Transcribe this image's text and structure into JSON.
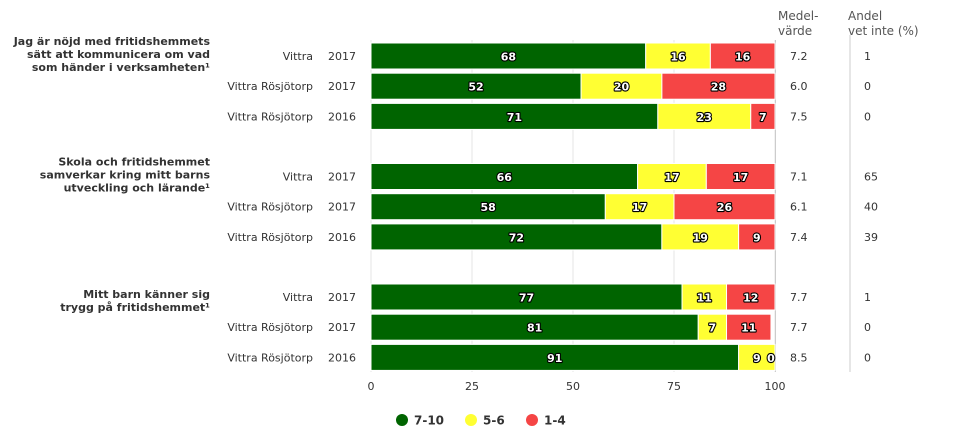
{
  "chart_data": {
    "type": "bar",
    "orientation": "horizontal",
    "stacked": true,
    "headers": {
      "mean_line1": "Medel-",
      "mean_line2": "värde",
      "dontknow_line1": "Andel",
      "dontknow_line2": "vet inte (%)"
    },
    "xlim": [
      0,
      100
    ],
    "xticks": [
      "0",
      "25",
      "50",
      "75",
      "100"
    ],
    "legend_position": "bottom",
    "series": [
      {
        "name": "7-10",
        "color": "#006400"
      },
      {
        "name": "5-6",
        "color": "#ffff33"
      },
      {
        "name": "1-4",
        "color": "#f54545"
      }
    ],
    "groups": [
      {
        "question": [
          "Jag är nöjd med fritidshemmets",
          "sätt att kommunicera om vad",
          "som händer i verksamheten¹"
        ],
        "rows": [
          {
            "label": "Vittra",
            "year": "2017",
            "values": [
              68,
              16,
              16
            ],
            "mean": "7.2",
            "dontknow": "1"
          },
          {
            "label": "Vittra Rösjötorp",
            "year": "2017",
            "values": [
              52,
              20,
              28
            ],
            "mean": "6.0",
            "dontknow": "0"
          },
          {
            "label": "Vittra Rösjötorp",
            "year": "2016",
            "values": [
              71,
              23,
              7
            ],
            "mean": "7.5",
            "dontknow": "0"
          }
        ]
      },
      {
        "question": [
          "Skola och fritidshemmet",
          "samverkar kring mitt barns",
          "utveckling och lärande¹"
        ],
        "rows": [
          {
            "label": "Vittra",
            "year": "2017",
            "values": [
              66,
              17,
              17
            ],
            "mean": "7.1",
            "dontknow": "65"
          },
          {
            "label": "Vittra Rösjötorp",
            "year": "2017",
            "values": [
              58,
              17,
              26
            ],
            "mean": "6.1",
            "dontknow": "40"
          },
          {
            "label": "Vittra Rösjötorp",
            "year": "2016",
            "values": [
              72,
              19,
              9
            ],
            "mean": "7.4",
            "dontknow": "39"
          }
        ]
      },
      {
        "question": [
          "Mitt barn känner sig",
          "trygg på fritidshemmet¹"
        ],
        "rows": [
          {
            "label": "Vittra",
            "year": "2017",
            "values": [
              77,
              11,
              12
            ],
            "mean": "7.7",
            "dontknow": "1"
          },
          {
            "label": "Vittra Rösjötorp",
            "year": "2017",
            "values": [
              81,
              7,
              11
            ],
            "mean": "7.7",
            "dontknow": "0"
          },
          {
            "label": "Vittra Rösjötorp",
            "year": "2016",
            "values": [
              91,
              9,
              0
            ],
            "mean": "8.5",
            "dontknow": "0"
          }
        ]
      }
    ]
  }
}
